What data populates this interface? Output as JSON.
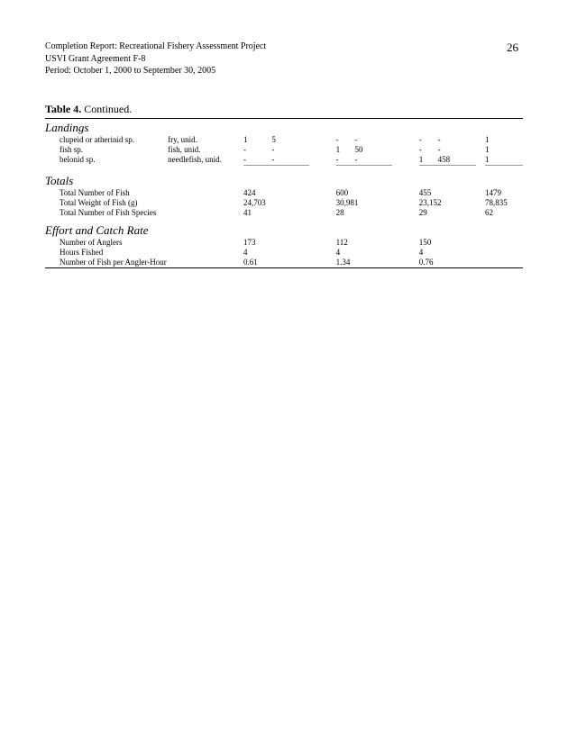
{
  "header": {
    "line1": "Completion Report:  Recreational Fishery Assessment Project",
    "line2": "USVI Grant Agreement F-8",
    "line3": "Period:  October 1, 2000 to September 30, 2005"
  },
  "pageNumber": "26",
  "tableTitleBold": "Table 4.",
  "tableTitleRest": " Continued.",
  "sections": {
    "landings": {
      "heading": "Landings",
      "rows": [
        {
          "sp": "clupeid or atherinid sp.",
          "common": "fry, unid.",
          "a": "1",
          "b": "5",
          "c": "-",
          "d": "-",
          "e": "-",
          "f": "-",
          "g": "1"
        },
        {
          "sp": "fish sp.",
          "common": "fish, unid.",
          "a": "-",
          "b": "-",
          "c": "1",
          "d": "50",
          "e": "-",
          "f": "-",
          "g": "1"
        },
        {
          "sp": "belonid sp.",
          "common": "needlefish, unid.",
          "a": "-",
          "b": "-",
          "c": "-",
          "d": "-",
          "e": "1",
          "f": "458",
          "g": "1"
        }
      ]
    },
    "totals": {
      "heading": "Totals",
      "rows": [
        {
          "label": "Total Number of Fish",
          "v1": "424",
          "v2": "600",
          "v3": "455",
          "v4": "1479"
        },
        {
          "label": "Total Weight of Fish (g)",
          "v1": "24,703",
          "v2": "30,981",
          "v3": "23,152",
          "v4": "78,835"
        },
        {
          "label": "Total Number of Fish Species",
          "v1": "41",
          "v2": "28",
          "v3": "29",
          "v4": "62"
        }
      ]
    },
    "effort": {
      "heading": "Effort and Catch Rate",
      "rows": [
        {
          "label": "Number of Anglers",
          "v1": "173",
          "v2": "112",
          "v3": "150",
          "v4": ""
        },
        {
          "label": "Hours Fished",
          "v1": "4",
          "v2": "4",
          "v3": "4",
          "v4": ""
        },
        {
          "label": "Number of Fish per Angler-Hour",
          "v1": "0.61",
          "v2": "1.34",
          "v3": "0.76",
          "v4": ""
        }
      ]
    }
  }
}
